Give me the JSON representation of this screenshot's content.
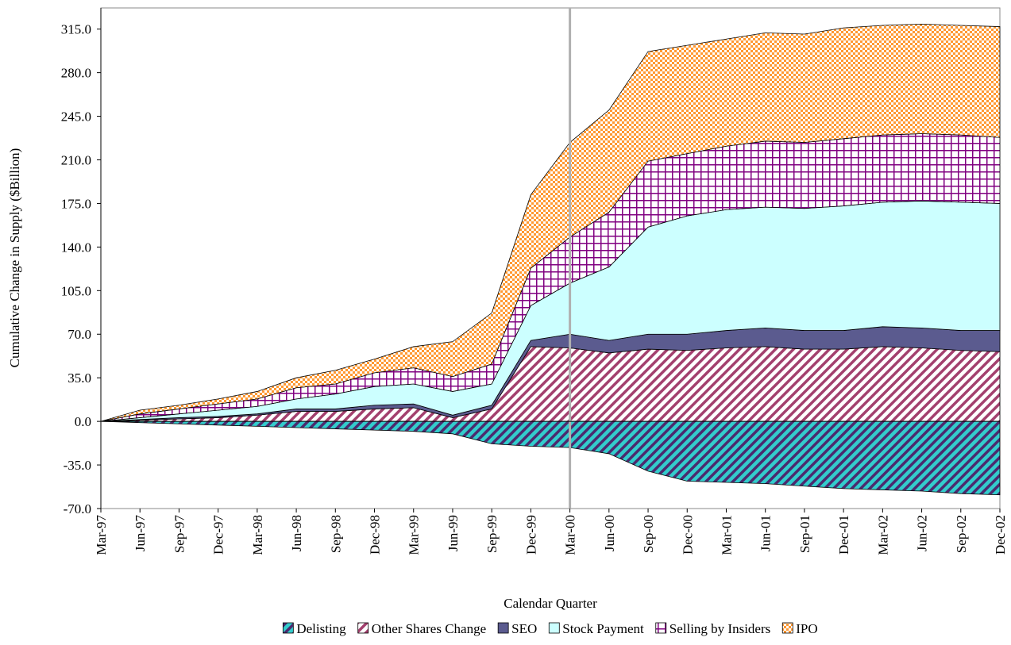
{
  "chart_data": {
    "type": "stacked_area",
    "y_label": "Cumulative Change in Supply ($Billion)",
    "x_label": "Calendar Quarter",
    "categories": [
      "Mar-97",
      "Jun-97",
      "Sep-97",
      "Dec-97",
      "Mar-98",
      "Jun-98",
      "Sep-98",
      "Dec-98",
      "Mar-99",
      "Jun-99",
      "Sep-99",
      "Dec-99",
      "Mar-00",
      "Jun-00",
      "Sep-00",
      "Dec-00",
      "Mar-01",
      "Jun-01",
      "Sep-01",
      "Dec-01",
      "Mar-02",
      "Jun-02",
      "Sep-02",
      "Dec-02"
    ],
    "reference_line": "Mar-00",
    "ylim": [
      -70,
      332
    ],
    "yticks": [
      {
        "value": -70,
        "label": "-70.0"
      },
      {
        "value": -35,
        "label": "-35.0"
      },
      {
        "value": 0,
        "label": "0.0"
      },
      {
        "value": 35,
        "label": "35.0"
      },
      {
        "value": 70,
        "label": "70.0"
      },
      {
        "value": 105,
        "label": "105.0"
      },
      {
        "value": 140,
        "label": "140.0"
      },
      {
        "value": 175,
        "label": "175.0"
      },
      {
        "value": 210,
        "label": "210.0"
      },
      {
        "value": 245,
        "label": "245.0"
      },
      {
        "value": 280,
        "label": "280.0"
      },
      {
        "value": 315,
        "label": "315.0"
      }
    ],
    "series": [
      {
        "name": "Delisting",
        "color": "#33cccc",
        "pattern": "dark-diagonal",
        "values": [
          0,
          -1,
          -2,
          -3,
          -4,
          -5,
          -6,
          -7,
          -8,
          -10,
          -18,
          -20,
          -21,
          -26,
          -40,
          -48,
          -49,
          -50,
          -52,
          -54,
          -55,
          -56,
          -58,
          -59
        ]
      },
      {
        "name": "Other Shares Change",
        "color": "#a3406e",
        "pattern": "light-diagonal",
        "values": [
          0,
          1,
          2,
          3,
          5,
          8,
          8,
          10,
          11,
          3,
          10,
          60,
          59,
          55,
          58,
          57,
          59,
          60,
          58,
          58,
          60,
          59,
          57,
          56
        ]
      },
      {
        "name": "SEO",
        "color": "#5b5b8f",
        "pattern": "solid",
        "values": [
          0,
          0.5,
          1,
          1,
          1,
          2,
          2,
          3,
          3,
          2,
          3,
          5,
          11,
          10,
          12,
          13,
          14,
          15,
          15,
          15,
          16,
          16,
          16,
          17
        ]
      },
      {
        "name": "Stock Payment",
        "color": "#ccffff",
        "pattern": "solid",
        "values": [
          0,
          1.5,
          3,
          5,
          6,
          8,
          12,
          15,
          16,
          19,
          17,
          28,
          41,
          59,
          86,
          95,
          97,
          97,
          98,
          100,
          100,
          102,
          103,
          102
        ]
      },
      {
        "name": "Selling by Insiders",
        "color": "#800080",
        "pattern": "grid",
        "values": [
          0,
          3,
          4,
          5,
          6,
          9,
          8,
          11,
          13,
          12,
          16,
          30,
          37,
          44,
          53,
          50,
          51,
          53,
          53,
          54,
          54,
          54,
          54,
          53
        ]
      },
      {
        "name": "IPO",
        "color": "#ff9933",
        "pattern": "checker",
        "values": [
          0,
          3,
          3,
          4,
          6,
          8,
          11,
          11,
          17,
          28,
          41,
          59,
          76,
          82,
          88,
          87,
          86,
          87,
          87,
          89,
          88,
          88,
          88,
          89
        ]
      }
    ]
  }
}
